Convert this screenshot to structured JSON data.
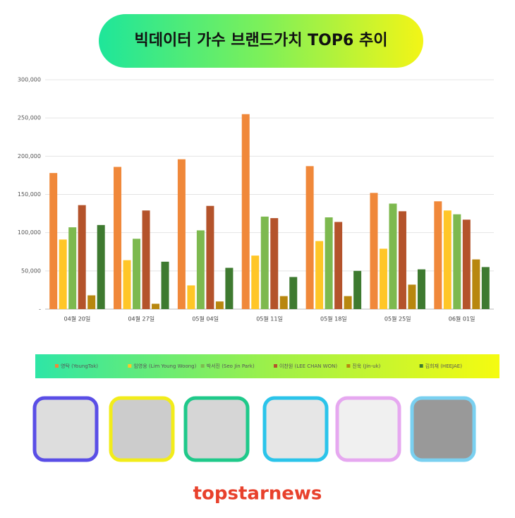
{
  "chart_data": {
    "type": "bar",
    "title": "빅데이터 가수 브랜드가치 TOP6 추이",
    "categories": [
      "04월 20일",
      "04월 27일",
      "05월 04일",
      "05월 11일",
      "05월 18일",
      "05월 25일",
      "06월 01일"
    ],
    "series": [
      {
        "name": "영탁 (YoungTak)",
        "color": "#f0883a",
        "values": [
          178000,
          186000,
          196000,
          255000,
          187000,
          152000,
          141000
        ]
      },
      {
        "name": "임영웅 (Lim Young Woong)",
        "color": "#ffc627",
        "values": [
          91000,
          64000,
          31000,
          70000,
          89000,
          79000,
          129000
        ]
      },
      {
        "name": "박서진 (Seo Jin Park)",
        "color": "#7db94f",
        "values": [
          107000,
          92000,
          103000,
          121000,
          120000,
          138000,
          124000
        ]
      },
      {
        "name": "이찬원 (LEE CHAN WON)",
        "color": "#b4532b",
        "values": [
          136000,
          129000,
          135000,
          119000,
          114000,
          128000,
          117000
        ]
      },
      {
        "name": "진욱 (Jin-uk)",
        "color": "#b8870f",
        "values": [
          18000,
          7000,
          10000,
          17000,
          17000,
          32000,
          65000
        ]
      },
      {
        "name": "김희재 (HEEJAE)",
        "color": "#3e7a30",
        "values": [
          110000,
          62000,
          54000,
          42000,
          50000,
          52000,
          55000
        ]
      }
    ],
    "ylim": [
      0,
      300000
    ],
    "yticks": [
      {
        "value": 0,
        "label": "-"
      },
      {
        "value": 50000,
        "label": "50,000"
      },
      {
        "value": 100000,
        "label": "100,000"
      },
      {
        "value": 150000,
        "label": "150,000"
      },
      {
        "value": 200000,
        "label": "200,000"
      },
      {
        "value": 250000,
        "label": "250,000"
      },
      {
        "value": 300000,
        "label": "300,000"
      }
    ],
    "grid": true,
    "footer": "topstarnews"
  }
}
